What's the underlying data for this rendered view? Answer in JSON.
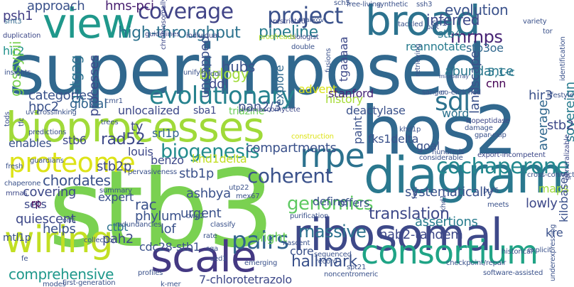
{
  "words": [
    {
      "id": "superimposed",
      "text": "superimposed",
      "color": "#31688e"
    },
    {
      "id": "hos2",
      "text": "hos2",
      "color": "#31688e"
    },
    {
      "id": "stb3",
      "text": "stb3",
      "color": "#7ad151"
    },
    {
      "id": "bioprocesses",
      "text": "bioprocesses",
      "color": "#a0da39"
    },
    {
      "id": "diagram",
      "text": "diagram",
      "color": "#2a788e"
    },
    {
      "id": "ribosomal",
      "text": "ribosomal",
      "color": "#3e4989"
    },
    {
      "id": "scale",
      "text": "scale",
      "color": "#443983"
    },
    {
      "id": "wiring",
      "text": "wiring",
      "color": "#c2df23"
    },
    {
      "id": "view",
      "text": "view",
      "color": "#1f988b"
    },
    {
      "id": "broad",
      "text": "broad",
      "color": "#2c728e"
    },
    {
      "id": "consortium",
      "text": "consortium",
      "color": "#20a486"
    },
    {
      "id": "proteome",
      "text": "proteome",
      "color": "#dde318"
    },
    {
      "id": "evolutionary",
      "text": "evolutionary",
      "color": "#26828e"
    },
    {
      "id": "rrpe",
      "text": "rrpe",
      "color": "#2c728e"
    },
    {
      "id": "coverage",
      "text": "coverage",
      "color": "#414487"
    },
    {
      "id": "project",
      "text": "project",
      "color": "#3b528b"
    },
    {
      "id": "cochaperone",
      "text": "cochaperone",
      "color": "#23888e"
    },
    {
      "id": "pairs",
      "text": "pairs",
      "color": "#32648e"
    },
    {
      "id": "sdl",
      "text": "sdl",
      "color": "#2c728e"
    },
    {
      "id": "biogenesis",
      "text": "biogenesis",
      "color": "#228c8d"
    },
    {
      "id": "genomics",
      "text": "genomics",
      "color": "#5ec962"
    },
    {
      "id": "coherent",
      "text": "coherent",
      "color": "#3b528b"
    },
    {
      "id": "mrnps",
      "text": "mrnps",
      "color": "#482475"
    },
    {
      "id": "high_throughput",
      "text": "high-throughput",
      "color": "#2c728e"
    },
    {
      "id": "pipeline",
      "text": "pipeline",
      "color": "#287c8e"
    },
    {
      "id": "hallmark",
      "text": "hallmark",
      "color": "#3b528b"
    },
    {
      "id": "translation",
      "text": "translation",
      "color": "#3e4989"
    },
    {
      "id": "comprehensive",
      "text": "comprehensive",
      "color": "#1f988b"
    },
    {
      "id": "chordates",
      "text": "chordates",
      "color": "#3b528b"
    },
    {
      "id": "massive",
      "text": "massive",
      "color": "#2c728e"
    },
    {
      "id": "approach",
      "text": "approach",
      "color": "#3b528b"
    },
    {
      "id": "hms_pci",
      "text": "hms-pci",
      "color": "#481f70"
    },
    {
      "id": "evolution",
      "text": "evolution",
      "color": "#3b528b"
    },
    {
      "id": "inferred",
      "text": "inferred",
      "color": "#3e4989"
    },
    {
      "id": "psh1",
      "text": "psh1",
      "color": "#433e85"
    },
    {
      "id": "stb4",
      "text": "stb4",
      "color": "#2a788e"
    },
    {
      "id": "stb3oe",
      "text": "stb3oe",
      "color": "#31688e"
    },
    {
      "id": "reannotate",
      "text": "reannotate",
      "color": "#287c8e"
    },
    {
      "id": "abundance",
      "text": "abundance",
      "color": "#2a788e"
    },
    {
      "id": "cnn",
      "text": "cnn",
      "color": "#440154"
    },
    {
      "id": "hir2",
      "text": "hir2",
      "color": "#21918c"
    },
    {
      "id": "gossypii",
      "text": "gossypii",
      "color": "#7ad151"
    },
    {
      "id": "gatgag",
      "text": "gatgag",
      "color": "#2c728e"
    },
    {
      "id": "processes",
      "text": "processes",
      "color": "#3e4989"
    },
    {
      "id": "ungapped",
      "text": "ungapped",
      "color": "#3b528b"
    },
    {
      "id": "hubs",
      "text": "hubs",
      "color": "#3b528b"
    },
    {
      "id": "biology",
      "text": "biology",
      "color": "#a0da39"
    },
    {
      "id": "ddl",
      "text": "ddl",
      "color": "#3e4989"
    },
    {
      "id": "explore",
      "text": "explore",
      "color": "#31688e"
    },
    {
      "id": "tgaaaaa",
      "text": "tgaaaaa",
      "color": "#3e4989"
    },
    {
      "id": "landscape",
      "text": "landscape",
      "color": "#3b528b"
    },
    {
      "id": "51c",
      "text": "5,1-c",
      "color": "#2a788e"
    },
    {
      "id": "hir3",
      "text": "hir3",
      "color": "#3b528b"
    },
    {
      "id": "categories",
      "text": "categories",
      "color": "#3b528b"
    },
    {
      "id": "hpc2",
      "text": "hpc2",
      "color": "#3b528b"
    },
    {
      "id": "global",
      "text": "global",
      "color": "#32648e"
    },
    {
      "id": "unlocalized",
      "text": "unlocalized",
      "color": "#3e4989"
    },
    {
      "id": "advent",
      "text": "advent",
      "color": "#d8e219"
    },
    {
      "id": "history",
      "text": "history",
      "color": "#a5db36"
    },
    {
      "id": "stanford",
      "text": "stanford",
      "color": "#482878"
    },
    {
      "id": "pan23",
      "text": "pan2/3",
      "color": "#3b528b"
    },
    {
      "id": "deactylase",
      "text": "deactylase",
      "color": "#3b528b"
    },
    {
      "id": "word",
      "text": "word",
      "color": "#2c728e"
    },
    {
      "id": "sovereign",
      "text": "sovereign",
      "color": "#287c8e"
    },
    {
      "id": "stb2",
      "text": "stb2",
      "color": "#3e4989"
    },
    {
      "id": "average",
      "text": "average",
      "color": "#31688e"
    },
    {
      "id": "sba1",
      "text": "sba1",
      "color": "#3e4989"
    },
    {
      "id": "triazine",
      "text": "triazine",
      "color": "#6ccd5a"
    },
    {
      "id": "paint",
      "text": "paint",
      "color": "#3b528b"
    },
    {
      "id": "ty",
      "text": "ty",
      "color": "#3e4989"
    },
    {
      "id": "rad52",
      "text": "rad52",
      "color": "#3e4989"
    },
    {
      "id": "srl1p",
      "text": "srl1p",
      "color": "#32648e"
    },
    {
      "id": "stb6",
      "text": "stb6",
      "color": "#3e4989"
    },
    {
      "id": "enables",
      "text": "enables",
      "color": "#3b528b"
    },
    {
      "id": "benzo",
      "text": "benzo",
      "color": "#3e4989"
    },
    {
      "id": "khd1delta",
      "text": "khd1delta",
      "color": "#c2df23"
    },
    {
      "id": "louis",
      "text": "louis",
      "color": "#3e4989"
    },
    {
      "id": "fks1delta",
      "text": "fks1delta",
      "color": "#3b528b"
    },
    {
      "id": "compartments",
      "text": "compartments",
      "color": "#3b528b"
    },
    {
      "id": "goal",
      "text": "goal",
      "color": "#3b528b"
    },
    {
      "id": "stb1p",
      "text": "stb1p",
      "color": "#3b528b"
    },
    {
      "id": "stb2p",
      "text": "stb2p",
      "color": "#3e4989"
    },
    {
      "id": "ashbya",
      "text": "ashbya",
      "color": "#3b528b"
    },
    {
      "id": "covering",
      "text": "covering",
      "color": "#3e4989"
    },
    {
      "id": "sets",
      "text": "sets",
      "color": "#3e4989"
    },
    {
      "id": "expert",
      "text": "expert",
      "color": "#3b528b"
    },
    {
      "id": "rac",
      "text": "rac",
      "color": "#3b528b"
    },
    {
      "id": "phylum",
      "text": "phylum",
      "color": "#3b528b"
    },
    {
      "id": "urgent",
      "text": "urgent",
      "color": "#3b528b"
    },
    {
      "id": "define",
      "text": "define",
      "color": "#3b528b"
    },
    {
      "id": "offers",
      "text": "offers",
      "color": "#3b528b"
    },
    {
      "id": "maps",
      "text": "maps",
      "color": "#a0da39"
    },
    {
      "id": "assertions",
      "text": "assertions",
      "color": "#287c8e"
    },
    {
      "id": "systematically",
      "text": "systematically",
      "color": "#3b528b"
    },
    {
      "id": "lowly",
      "text": "lowly",
      "color": "#3e4989"
    },
    {
      "id": "quiescent",
      "text": "quiescent",
      "color": "#3e4989"
    },
    {
      "id": "rp",
      "text": "rp",
      "color": "#440154"
    },
    {
      "id": "mtl1p",
      "text": "mtl1p",
      "color": "#3b528b"
    },
    {
      "id": "helps",
      "text": "helps",
      "color": "#3b528b"
    },
    {
      "id": "ctbt",
      "text": "ctbt",
      "color": "#2c728e"
    },
    {
      "id": "pah2",
      "text": "pah2",
      "color": "#3e4989"
    },
    {
      "id": "lof",
      "text": "lof",
      "color": "#3b528b"
    },
    {
      "id": "cdc28_stb1",
      "text": "cdc28-stb1",
      "color": "#3b528b"
    },
    {
      "id": "flight",
      "text": "flight",
      "color": "#6ccd5a"
    },
    {
      "id": "core",
      "text": "core",
      "color": "#3b528b"
    },
    {
      "id": "nab2_tandem",
      "text": "nab2-tandem",
      "color": "#3e4989"
    },
    {
      "id": "kre",
      "text": "kre",
      "color": "#3b528b"
    },
    {
      "id": "kilobases",
      "text": "kilobases",
      "color": "#3b528b"
    },
    {
      "id": "7_chloro",
      "text": "7-chlorotetrazolo",
      "color": "#3e4989"
    },
    {
      "id": "smt3",
      "text": "smt3",
      "color": "#31688e"
    },
    {
      "id": "srl1",
      "text": "srl1",
      "color": "#3b528b"
    },
    {
      "id": "markov",
      "text": "markov",
      "color": "#3b528b"
    },
    {
      "id": "restricted",
      "text": "restricted",
      "color": "#3e4989"
    },
    {
      "id": "free_living",
      "text": "free-living",
      "color": "#3b528b"
    },
    {
      "id": "synthetic",
      "text": "synthetic",
      "color": "#3b528b"
    },
    {
      "id": "sch5",
      "text": "sch5",
      "color": "#3b528b"
    },
    {
      "id": "tackled",
      "text": "tackled",
      "color": "#3b528b"
    },
    {
      "id": "duplication",
      "text": "duplication",
      "color": "#3e4989"
    },
    {
      "id": "guidelines",
      "text": "guidelines",
      "color": "#3e4989"
    },
    {
      "id": "individual",
      "text": "individual",
      "color": "#3e4989"
    },
    {
      "id": "biologist",
      "text": "biologist",
      "color": "#3e4989"
    },
    {
      "id": "proofreads",
      "text": "proofreads",
      "color": "#b5de2b"
    },
    {
      "id": "double",
      "text": "double",
      "color": "#3b528b"
    },
    {
      "id": "pak",
      "text": "pak",
      "color": "#3b528b"
    },
    {
      "id": "variety",
      "text": "variety",
      "color": "#3b528b"
    },
    {
      "id": "tor",
      "text": "tor",
      "color": "#3b528b"
    },
    {
      "id": "insights",
      "text": "insights",
      "color": "#3b528b"
    },
    {
      "id": "uv_crosslinking",
      "text": "uv-crosslinking",
      "color": "#3b528b"
    },
    {
      "id": "chromosomally",
      "text": "chromosomally",
      "color": "#3e4989"
    },
    {
      "id": "unifying",
      "text": "unifying",
      "color": "#3b528b"
    },
    {
      "id": "fusions",
      "text": "fusions",
      "color": "#3b528b"
    },
    {
      "id": "retrieving",
      "text": "retrieving",
      "color": "#3b528b"
    },
    {
      "id": "sanger",
      "text": "sanger",
      "color": "#3b528b"
    },
    {
      "id": "co_enriched",
      "text": "co-enriched",
      "color": "#3b528b"
    },
    {
      "id": "microarray",
      "text": "microarray",
      "color": "#3b528b"
    },
    {
      "id": "hemiascomycete",
      "text": "hemiascomycete",
      "color": "#3e4989"
    },
    {
      "id": "isopeptidase",
      "text": "isopeptidase",
      "color": "#3e4989"
    },
    {
      "id": "tods",
      "text": "tods",
      "color": "#3b528b"
    },
    {
      "id": "tfc",
      "text": "tfc",
      "color": "#3b528b"
    },
    {
      "id": "predictions",
      "text": "predictions",
      "color": "#3b528b"
    },
    {
      "id": "guardians",
      "text": "guardians",
      "color": "#3b528b"
    },
    {
      "id": "fresh",
      "text": "fresh",
      "color": "#3b528b"
    },
    {
      "id": "chaperone",
      "text": "chaperone",
      "color": "#3b528b"
    },
    {
      "id": "mrnas",
      "text": "mrnas",
      "color": "#3e4989"
    },
    {
      "id": "ddl2",
      "text": "ddl",
      "color": "#3b528b"
    },
    {
      "id": "cmr1",
      "text": "cmr1",
      "color": "#3b528b"
    },
    {
      "id": "trees",
      "text": "trees",
      "color": "#3b528b"
    },
    {
      "id": "construction",
      "text": "construction",
      "color": "#dde318"
    },
    {
      "id": "hundreds",
      "text": "hundreds",
      "color": "#3b528b"
    },
    {
      "id": "khd1p",
      "text": "khd1p",
      "color": "#3b528b"
    },
    {
      "id": "damage",
      "text": "damage",
      "color": "#3b528b"
    },
    {
      "id": "gpar_cxip",
      "text": "gpar-cxip",
      "color": "#3b528b"
    },
    {
      "id": "considerable",
      "text": "considerable",
      "color": "#3b528b"
    },
    {
      "id": "export_incompetent",
      "text": "export-incompetent",
      "color": "#3e4989"
    },
    {
      "id": "cross_connections",
      "text": "cross-connections",
      "color": "#3b528b"
    },
    {
      "id": "generalizable",
      "text": "generalizable",
      "color": "#3e4989"
    },
    {
      "id": "identification",
      "text": "identification",
      "color": "#3b528b"
    },
    {
      "id": "lifestyles",
      "text": "lifestyles",
      "color": "#3b528b"
    },
    {
      "id": "pervasiveness",
      "text": "pervasiveness",
      "color": "#3b528b"
    },
    {
      "id": "cwp2",
      "text": "cwp2",
      "color": "#3b528b"
    },
    {
      "id": "mex67",
      "text": "mex67",
      "color": "#3b528b"
    },
    {
      "id": "utp22",
      "text": "utp22",
      "color": "#3b528b"
    },
    {
      "id": "foci",
      "text": "foci",
      "color": "#3b528b"
    },
    {
      "id": "khd1",
      "text": "khd1",
      "color": "#3b528b"
    },
    {
      "id": "puf6",
      "text": "puf6",
      "color": "#3b528b"
    },
    {
      "id": "meets",
      "text": "meets",
      "color": "#3b528b"
    },
    {
      "id": "explicit",
      "text": "explicit",
      "color": "#3b528b"
    },
    {
      "id": "underexpressing",
      "text": "underexpressing",
      "color": "#3b528b"
    },
    {
      "id": "summary",
      "text": "summary",
      "color": "#3b528b"
    },
    {
      "id": "orfs",
      "text": "orfs",
      "color": "#3b528b"
    },
    {
      "id": "redundancies",
      "text": "redundancies",
      "color": "#3b528b"
    },
    {
      "id": "collection",
      "text": "collection",
      "color": "#3b528b"
    },
    {
      "id": "classify",
      "text": "classify",
      "color": "#3b528b"
    },
    {
      "id": "rate",
      "text": "rate",
      "color": "#3b528b"
    },
    {
      "id": "sga",
      "text": "sga",
      "color": "#3b528b"
    },
    {
      "id": "sed1",
      "text": "sed1",
      "color": "#3b528b"
    },
    {
      "id": "nascent",
      "text": "nascent",
      "color": "#3b528b"
    },
    {
      "id": "purification",
      "text": "purification",
      "color": "#3b528b"
    },
    {
      "id": "sequenced",
      "text": "sequenced",
      "color": "#3b528b"
    },
    {
      "id": "record",
      "text": "record",
      "color": "#3b528b"
    },
    {
      "id": "noncentromeric",
      "text": "noncentromeric",
      "color": "#3b528b"
    },
    {
      "id": "emerging",
      "text": "emerging",
      "color": "#3b528b"
    },
    {
      "id": "spt21",
      "text": "spt21",
      "color": "#3b528b"
    },
    {
      "id": "checkpoint_repair",
      "text": "checkpoint/repair",
      "color": "#3b528b"
    },
    {
      "id": "historical",
      "text": "historical",
      "color": "#3b528b"
    },
    {
      "id": "software_assisted",
      "text": "software-assisted",
      "color": "#3b528b"
    },
    {
      "id": "profiles",
      "text": "profiles",
      "color": "#3b528b"
    },
    {
      "id": "first_generation",
      "text": "first-generation",
      "color": "#3b528b"
    },
    {
      "id": "k_mer",
      "text": "k-mer",
      "color": "#3b528b"
    },
    {
      "id": "modes",
      "text": "modes",
      "color": "#3b528b"
    },
    {
      "id": "ssh3",
      "text": "ssh3",
      "color": "#3b528b"
    },
    {
      "id": "fe",
      "text": "fe",
      "color": "#3b528b"
    }
  ]
}
